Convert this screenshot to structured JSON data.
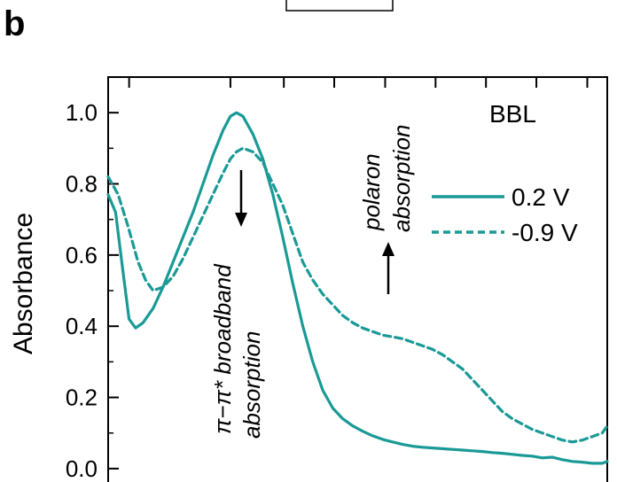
{
  "panel_label": "b",
  "chart_data": {
    "type": "line",
    "title": "",
    "ylabel": "Absorbance",
    "xlabel": "",
    "ylim": [
      -0.07,
      1.1
    ],
    "xlim": [
      0,
      100
    ],
    "yticks": [
      0.0,
      0.2,
      0.4,
      0.6,
      0.8,
      1.0
    ],
    "ytick_labels": [
      "0.0",
      "0.2",
      "0.4",
      "0.6",
      "0.8",
      "1.0"
    ],
    "xticks": [
      4.2,
      24.5,
      35.2,
      45.3,
      55.5,
      65.6,
      75.7,
      85.8,
      96
    ],
    "sample_label": "BBL",
    "legend": {
      "placement": "top-right",
      "entries": [
        "0.2 V",
        "-0.9 V"
      ]
    },
    "series": [
      {
        "name": "0.2 V",
        "color": "#1a9a96",
        "style": "solid",
        "x": [
          0,
          1.5,
          3,
          4.2,
          5.5,
          7,
          9,
          11,
          13,
          15,
          17,
          19,
          21,
          23,
          24.5,
          25.7,
          27,
          29,
          31,
          33,
          35,
          37,
          39,
          41,
          43,
          45,
          47,
          49,
          51,
          53,
          55,
          57,
          59,
          61,
          63,
          65,
          67,
          69,
          71,
          73,
          75,
          77,
          79,
          81,
          83,
          85,
          87,
          89,
          91,
          93,
          95,
          97,
          99,
          100
        ],
        "y": [
          0.77,
          0.72,
          0.55,
          0.42,
          0.395,
          0.41,
          0.45,
          0.51,
          0.58,
          0.65,
          0.72,
          0.8,
          0.88,
          0.95,
          0.99,
          1.0,
          0.99,
          0.94,
          0.87,
          0.77,
          0.65,
          0.52,
          0.4,
          0.3,
          0.22,
          0.17,
          0.14,
          0.12,
          0.105,
          0.092,
          0.082,
          0.075,
          0.068,
          0.063,
          0.06,
          0.058,
          0.056,
          0.054,
          0.052,
          0.05,
          0.048,
          0.045,
          0.043,
          0.04,
          0.037,
          0.035,
          0.03,
          0.032,
          0.025,
          0.02,
          0.018,
          0.015,
          0.015,
          0.02
        ]
      },
      {
        "name": "-0.9 V",
        "color": "#1a9a96",
        "style": "dashed",
        "x": [
          0,
          2,
          4,
          6,
          7.5,
          9,
          11,
          13,
          15,
          17,
          19,
          21,
          23,
          24.5,
          25.7,
          27,
          29,
          31,
          33,
          35,
          37,
          39,
          41,
          43,
          45,
          47,
          49,
          51,
          53,
          55,
          57,
          59,
          61,
          63,
          65,
          67,
          69,
          71,
          73,
          75,
          77,
          79,
          81,
          83,
          85,
          87,
          89,
          91,
          93,
          95,
          97,
          99,
          100
        ],
        "y": [
          0.82,
          0.77,
          0.68,
          0.58,
          0.53,
          0.5,
          0.51,
          0.54,
          0.59,
          0.65,
          0.71,
          0.77,
          0.83,
          0.87,
          0.89,
          0.9,
          0.89,
          0.86,
          0.8,
          0.74,
          0.66,
          0.58,
          0.53,
          0.49,
          0.46,
          0.43,
          0.41,
          0.395,
          0.385,
          0.375,
          0.37,
          0.365,
          0.355,
          0.345,
          0.335,
          0.32,
          0.3,
          0.28,
          0.25,
          0.22,
          0.19,
          0.16,
          0.14,
          0.125,
          0.11,
          0.1,
          0.09,
          0.08,
          0.075,
          0.08,
          0.09,
          0.1,
          0.12
        ]
      }
    ],
    "annotations": [
      {
        "lines": [
          "π−π* broadband",
          "absorption"
        ],
        "arrow": "down"
      },
      {
        "lines": [
          "polaron",
          "absorption"
        ],
        "arrow": "up"
      }
    ]
  }
}
